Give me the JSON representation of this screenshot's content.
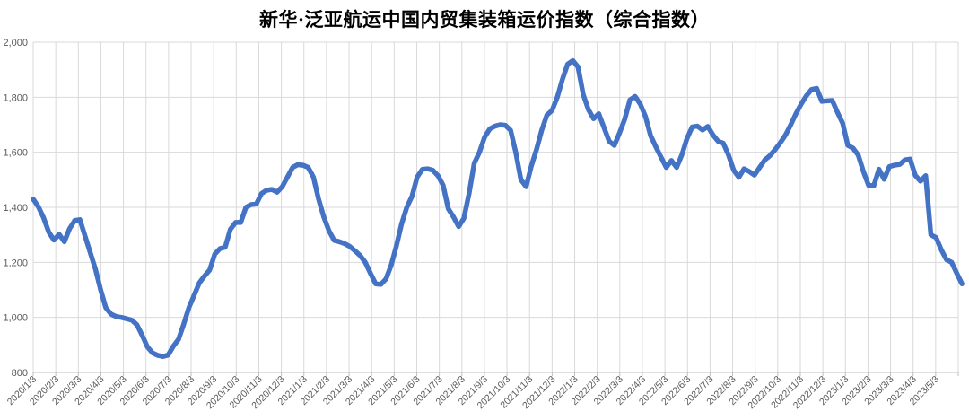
{
  "chart": {
    "title": "新华·泛亚航运中国内贸集装箱运价指数（综合指数）"
  },
  "style": {
    "background": "#FFFFFF",
    "line_color": "#4472C4",
    "grid_color": "#D9D9D9",
    "axis_color": "#BFBFBF",
    "tick_label_color": "#595959",
    "title_color": "#000000"
  },
  "chart_data": {
    "type": "line",
    "title": "新华·泛亚航运中国内贸集装箱运价指数（综合指数）",
    "legend": "none",
    "grid": true,
    "y": {
      "min": 800,
      "max": 2000,
      "step": 200,
      "tick_labels": [
        "800",
        "1,000",
        "1,200",
        "1,400",
        "1,600",
        "1,800",
        "2,000"
      ]
    },
    "x": {
      "unit": "weekly points, first point 2020/1/3, monthly tick labels",
      "tick_labels": [
        "2020/1/3",
        "2020/2/3",
        "2020/3/3",
        "2020/4/3",
        "2020/5/3",
        "2020/6/3",
        "2020/7/3",
        "2020/8/3",
        "2020/9/3",
        "2020/10/3",
        "2020/11/3",
        "2020/12/3",
        "2021/1/3",
        "2021/2/3",
        "2021/3/3",
        "2021/4/3",
        "2021/5/3",
        "2021/6/3",
        "2021/7/3",
        "2021/8/3",
        "2021/9/3",
        "2021/10/3",
        "2021/11/3",
        "2021/12/3",
        "2022/1/3",
        "2022/2/3",
        "2022/3/3",
        "2022/4/3",
        "2022/5/3",
        "2022/6/3",
        "2022/7/3",
        "2022/8/3",
        "2022/9/3",
        "2022/10/3",
        "2022/11/3",
        "2022/12/3",
        "2023/1/3",
        "2023/2/3",
        "2023/3/3",
        "2023/4/3",
        "2023/5/3"
      ]
    },
    "series": [
      {
        "name": "综合指数",
        "color": "#4472C4",
        "values": [
          1430,
          1402,
          1362,
          1310,
          1281,
          1302,
          1275,
          1322,
          1352,
          1355,
          1295,
          1235,
          1175,
          1100,
          1035,
          1012,
          1003,
          1000,
          995,
          990,
          973,
          935,
          893,
          871,
          862,
          858,
          863,
          895,
          920,
          975,
          1035,
          1080,
          1125,
          1150,
          1172,
          1230,
          1250,
          1255,
          1320,
          1345,
          1345,
          1400,
          1410,
          1412,
          1450,
          1462,
          1465,
          1455,
          1475,
          1510,
          1545,
          1555,
          1553,
          1545,
          1510,
          1430,
          1365,
          1315,
          1280,
          1275,
          1268,
          1258,
          1242,
          1225,
          1200,
          1160,
          1122,
          1120,
          1140,
          1190,
          1260,
          1340,
          1400,
          1440,
          1510,
          1538,
          1540,
          1535,
          1515,
          1480,
          1395,
          1365,
          1330,
          1360,
          1450,
          1560,
          1600,
          1655,
          1685,
          1695,
          1700,
          1698,
          1680,
          1600,
          1500,
          1475,
          1550,
          1610,
          1680,
          1735,
          1752,
          1800,
          1865,
          1920,
          1933,
          1910,
          1810,
          1755,
          1722,
          1740,
          1690,
          1640,
          1625,
          1670,
          1720,
          1790,
          1803,
          1775,
          1730,
          1660,
          1620,
          1582,
          1545,
          1570,
          1545,
          1590,
          1650,
          1692,
          1695,
          1681,
          1694,
          1663,
          1640,
          1633,
          1590,
          1535,
          1509,
          1540,
          1530,
          1517,
          1545,
          1572,
          1588,
          1610,
          1635,
          1663,
          1700,
          1740,
          1775,
          1805,
          1828,
          1832,
          1785,
          1787,
          1788,
          1745,
          1706,
          1625,
          1615,
          1590,
          1530,
          1480,
          1478,
          1538,
          1502,
          1548,
          1553,
          1556,
          1572,
          1575,
          1516,
          1495,
          1515,
          1300,
          1290,
          1246,
          1210,
          1200,
          1160,
          1122
        ]
      }
    ]
  }
}
